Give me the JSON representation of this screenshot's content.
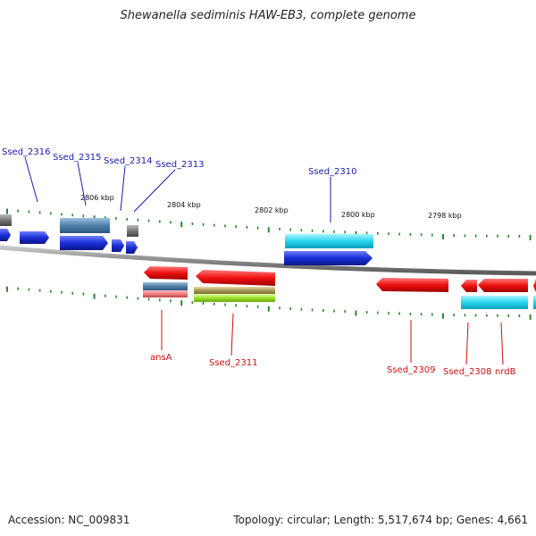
{
  "title": "Shewanella sediminis HAW-EB3, complete genome",
  "footer": {
    "accession": "Accession: NC_009831",
    "summary": "Topology: circular; Length: 5,517,674 bp; Genes: 4,661"
  },
  "ruler_labels": [
    "2806 kbp",
    "2804 kbp",
    "2802 kbp",
    "2800 kbp",
    "2798 kbp"
  ],
  "colors": {
    "backbone": "#8a8a8a",
    "tick": "#2a8a2a",
    "forward_label": "#1a1aaa",
    "reverse_label": "#cc1111",
    "cds_blue": "#1a2ed6",
    "cds_red": "#ee1111",
    "cyan": "#29d4ec",
    "steel": "#4f7fa8",
    "gray": "#777777"
  },
  "gene_labels": {
    "forward": [
      "Ssed_2316",
      "Ssed_2315",
      "Ssed_2314",
      "Ssed_2313",
      "Ssed_2310"
    ],
    "reverse": [
      "ansA",
      "Ssed_2311",
      "Ssed_2309",
      "Ssed_2308",
      "nrdB"
    ]
  }
}
